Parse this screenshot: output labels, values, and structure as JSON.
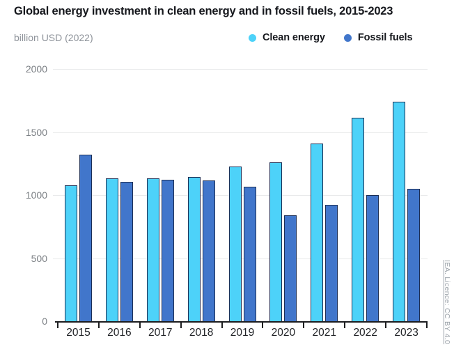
{
  "header": {
    "title": "Global energy investment in clean energy and in fossil fuels, 2015-2023",
    "unit_label": "billion USD (2022)"
  },
  "legend": {
    "items": [
      {
        "label": "Clean energy",
        "color": "#4DD2F9"
      },
      {
        "label": "Fossil fuels",
        "color": "#4176CB"
      }
    ]
  },
  "chart_data": {
    "type": "bar",
    "title": "Global energy investment in clean energy and in fossil fuels, 2015-2023",
    "ylabel": "billion USD (2022)",
    "xlabel": "",
    "categories": [
      "2015",
      "2016",
      "2017",
      "2018",
      "2019",
      "2020",
      "2021",
      "2022",
      "2023"
    ],
    "series": [
      {
        "name": "Clean energy",
        "color": "#4DD2F9",
        "values": [
          1080,
          1130,
          1135,
          1145,
          1225,
          1260,
          1410,
          1615,
          1740
        ]
      },
      {
        "name": "Fossil fuels",
        "color": "#4176CB",
        "values": [
          1320,
          1105,
          1120,
          1115,
          1065,
          840,
          920,
          1000,
          1050
        ]
      }
    ],
    "ylim": [
      0,
      2000
    ],
    "yticks": [
      0,
      500,
      1000,
      1500,
      2000
    ],
    "grid": "horizontal",
    "legend_position": "top"
  },
  "footer": {
    "license": "IEA. Licence: CC BY 4.0"
  },
  "colors": {
    "clean": "#4DD2F9",
    "fossil": "#4176CB",
    "bar_border": "#1D2F55",
    "axis": "#1C1D1F",
    "gridline": "#E9EAEB",
    "title_text": "#16181D",
    "muted_text": "#8F949B",
    "ytick_label": "#7C8085",
    "xtick_label": "#202226",
    "license_text": "#9AA1A8"
  }
}
